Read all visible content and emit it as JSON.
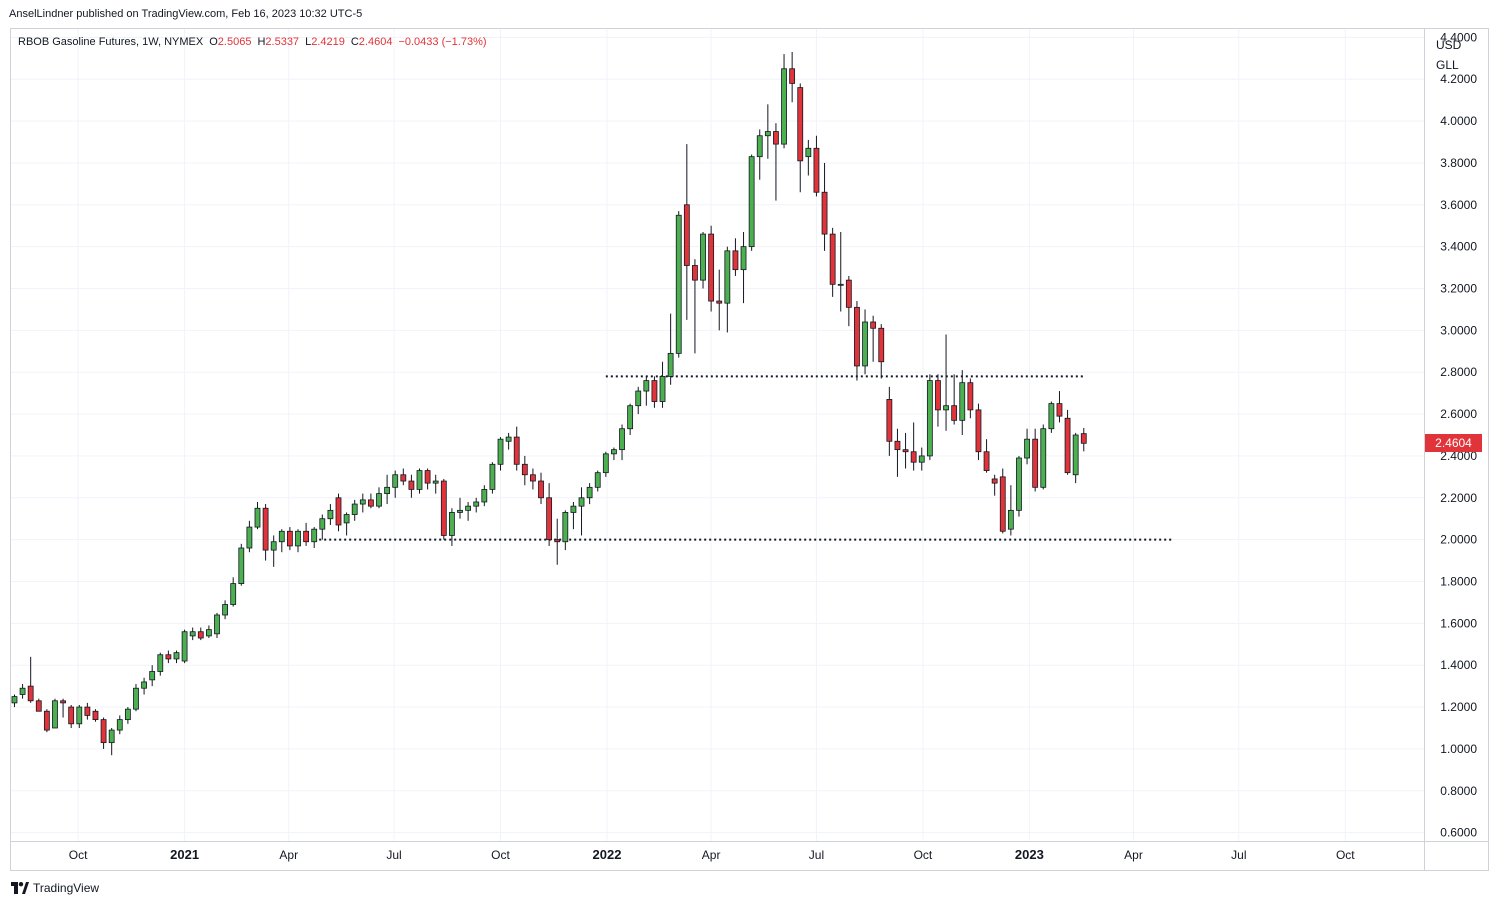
{
  "header": {
    "published": "AnselLindner published on TradingView.com, Feb 16, 2023 10:32 UTC-5"
  },
  "legend": {
    "symbol": "RBOB Gasoline Futures, 1W, NYMEX",
    "open_label": "O",
    "open": "2.5065",
    "high_label": "H",
    "high": "2.5337",
    "low_label": "L",
    "low": "2.4219",
    "close_label": "C",
    "close": "2.4604",
    "change": "−0.0433 (−1.73%)"
  },
  "axis": {
    "currency": "USD",
    "unit": "GLL",
    "last_price": "2.4604"
  },
  "footer": {
    "brand": "TradingView"
  },
  "colors": {
    "up": "#4caf50",
    "down": "#e0343a",
    "grid": "#f0f3fa",
    "text": "#131722"
  },
  "chart_data": {
    "type": "candlestick",
    "interval": "1W",
    "y_ticks": [
      "0.6000",
      "0.8000",
      "1.0000",
      "1.2000",
      "1.4000",
      "1.6000",
      "1.8000",
      "2.0000",
      "2.2000",
      "2.4000",
      "2.6000",
      "2.8000",
      "3.0000",
      "3.2000",
      "3.4000",
      "3.6000",
      "3.8000",
      "4.0000",
      "4.2000",
      "4.4000"
    ],
    "ylim": [
      0.56,
      4.44
    ],
    "x_ticks": [
      {
        "label": "Oct",
        "date": "2020-10-01",
        "bold": false
      },
      {
        "label": "2021",
        "date": "2021-01-01",
        "bold": true
      },
      {
        "label": "Apr",
        "date": "2021-04-01",
        "bold": false
      },
      {
        "label": "Jul",
        "date": "2021-07-01",
        "bold": false
      },
      {
        "label": "Oct",
        "date": "2021-10-01",
        "bold": false
      },
      {
        "label": "2022",
        "date": "2022-01-01",
        "bold": true
      },
      {
        "label": "Apr",
        "date": "2022-04-01",
        "bold": false
      },
      {
        "label": "Jul",
        "date": "2022-07-01",
        "bold": false
      },
      {
        "label": "Oct",
        "date": "2022-10-01",
        "bold": false
      },
      {
        "label": "2023",
        "date": "2023-01-01",
        "bold": true
      },
      {
        "label": "Apr",
        "date": "2023-04-01",
        "bold": false
      },
      {
        "label": "Jul",
        "date": "2023-07-01",
        "bold": false
      },
      {
        "label": "Oct",
        "date": "2023-10-01",
        "bold": false
      }
    ],
    "xlim": [
      "2020-08-04",
      "2023-12-08"
    ],
    "candles": [
      {
        "d": "2020-08-07",
        "o": 1.22,
        "h": 1.26,
        "l": 1.2,
        "c": 1.25
      },
      {
        "d": "2020-08-14",
        "o": 1.26,
        "h": 1.31,
        "l": 1.24,
        "c": 1.29
      },
      {
        "d": "2020-08-21",
        "o": 1.3,
        "h": 1.44,
        "l": 1.22,
        "c": 1.23
      },
      {
        "d": "2020-08-28",
        "o": 1.23,
        "h": 1.24,
        "l": 1.18,
        "c": 1.18
      },
      {
        "d": "2020-09-04",
        "o": 1.18,
        "h": 1.19,
        "l": 1.08,
        "c": 1.09
      },
      {
        "d": "2020-09-11",
        "o": 1.1,
        "h": 1.24,
        "l": 1.1,
        "c": 1.23
      },
      {
        "d": "2020-09-18",
        "o": 1.23,
        "h": 1.24,
        "l": 1.15,
        "c": 1.22
      },
      {
        "d": "2020-09-25",
        "o": 1.2,
        "h": 1.21,
        "l": 1.1,
        "c": 1.12
      },
      {
        "d": "2020-10-02",
        "o": 1.12,
        "h": 1.21,
        "l": 1.1,
        "c": 1.2
      },
      {
        "d": "2020-10-09",
        "o": 1.2,
        "h": 1.22,
        "l": 1.14,
        "c": 1.16
      },
      {
        "d": "2020-10-16",
        "o": 1.18,
        "h": 1.19,
        "l": 1.13,
        "c": 1.14
      },
      {
        "d": "2020-10-23",
        "o": 1.14,
        "h": 1.15,
        "l": 1.0,
        "c": 1.03
      },
      {
        "d": "2020-10-30",
        "o": 1.03,
        "h": 1.1,
        "l": 0.97,
        "c": 1.09
      },
      {
        "d": "2020-11-06",
        "o": 1.09,
        "h": 1.16,
        "l": 1.07,
        "c": 1.14
      },
      {
        "d": "2020-11-13",
        "o": 1.14,
        "h": 1.2,
        "l": 1.12,
        "c": 1.19
      },
      {
        "d": "2020-11-20",
        "o": 1.19,
        "h": 1.31,
        "l": 1.18,
        "c": 1.29
      },
      {
        "d": "2020-11-27",
        "o": 1.29,
        "h": 1.34,
        "l": 1.26,
        "c": 1.32
      },
      {
        "d": "2020-12-04",
        "o": 1.33,
        "h": 1.4,
        "l": 1.3,
        "c": 1.37
      },
      {
        "d": "2020-12-11",
        "o": 1.37,
        "h": 1.46,
        "l": 1.35,
        "c": 1.45
      },
      {
        "d": "2020-12-18",
        "o": 1.45,
        "h": 1.47,
        "l": 1.41,
        "c": 1.43
      },
      {
        "d": "2020-12-25",
        "o": 1.43,
        "h": 1.47,
        "l": 1.41,
        "c": 1.46
      },
      {
        "d": "2021-01-01",
        "o": 1.42,
        "h": 1.57,
        "l": 1.41,
        "c": 1.56
      },
      {
        "d": "2021-01-08",
        "o": 1.54,
        "h": 1.58,
        "l": 1.52,
        "c": 1.56
      },
      {
        "d": "2021-01-15",
        "o": 1.56,
        "h": 1.58,
        "l": 1.52,
        "c": 1.53
      },
      {
        "d": "2021-01-22",
        "o": 1.54,
        "h": 1.59,
        "l": 1.53,
        "c": 1.57
      },
      {
        "d": "2021-01-29",
        "o": 1.55,
        "h": 1.65,
        "l": 1.53,
        "c": 1.64
      },
      {
        "d": "2021-02-05",
        "o": 1.64,
        "h": 1.71,
        "l": 1.62,
        "c": 1.69
      },
      {
        "d": "2021-02-12",
        "o": 1.69,
        "h": 1.82,
        "l": 1.68,
        "c": 1.79
      },
      {
        "d": "2021-02-19",
        "o": 1.79,
        "h": 1.98,
        "l": 1.78,
        "c": 1.96
      },
      {
        "d": "2021-02-26",
        "o": 1.96,
        "h": 2.09,
        "l": 1.94,
        "c": 2.06
      },
      {
        "d": "2021-03-05",
        "o": 2.06,
        "h": 2.18,
        "l": 2.05,
        "c": 2.15
      },
      {
        "d": "2021-03-12",
        "o": 2.15,
        "h": 2.17,
        "l": 1.9,
        "c": 1.95
      },
      {
        "d": "2021-03-19",
        "o": 1.95,
        "h": 2.02,
        "l": 1.87,
        "c": 1.99
      },
      {
        "d": "2021-03-26",
        "o": 1.99,
        "h": 2.05,
        "l": 1.94,
        "c": 2.04
      },
      {
        "d": "2021-04-02",
        "o": 2.04,
        "h": 2.06,
        "l": 1.95,
        "c": 1.97
      },
      {
        "d": "2021-04-09",
        "o": 1.97,
        "h": 2.05,
        "l": 1.94,
        "c": 2.04
      },
      {
        "d": "2021-04-16",
        "o": 2.04,
        "h": 2.08,
        "l": 1.97,
        "c": 1.99
      },
      {
        "d": "2021-04-23",
        "o": 1.99,
        "h": 2.06,
        "l": 1.96,
        "c": 2.05
      },
      {
        "d": "2021-04-30",
        "o": 2.05,
        "h": 2.12,
        "l": 2.0,
        "c": 2.1
      },
      {
        "d": "2021-05-07",
        "o": 2.1,
        "h": 2.17,
        "l": 2.07,
        "c": 2.14
      },
      {
        "d": "2021-05-14",
        "o": 2.2,
        "h": 2.22,
        "l": 2.04,
        "c": 2.07
      },
      {
        "d": "2021-05-21",
        "o": 2.08,
        "h": 2.13,
        "l": 2.02,
        "c": 2.12
      },
      {
        "d": "2021-05-28",
        "o": 2.12,
        "h": 2.19,
        "l": 2.09,
        "c": 2.17
      },
      {
        "d": "2021-06-04",
        "o": 2.17,
        "h": 2.22,
        "l": 2.13,
        "c": 2.19
      },
      {
        "d": "2021-06-11",
        "o": 2.19,
        "h": 2.22,
        "l": 2.15,
        "c": 2.16
      },
      {
        "d": "2021-06-18",
        "o": 2.16,
        "h": 2.25,
        "l": 2.15,
        "c": 2.22
      },
      {
        "d": "2021-06-25",
        "o": 2.22,
        "h": 2.31,
        "l": 2.17,
        "c": 2.25
      },
      {
        "d": "2021-07-02",
        "o": 2.25,
        "h": 2.33,
        "l": 2.2,
        "c": 2.31
      },
      {
        "d": "2021-07-09",
        "o": 2.31,
        "h": 2.34,
        "l": 2.26,
        "c": 2.28
      },
      {
        "d": "2021-07-16",
        "o": 2.28,
        "h": 2.31,
        "l": 2.2,
        "c": 2.24
      },
      {
        "d": "2021-07-23",
        "o": 2.24,
        "h": 2.34,
        "l": 2.22,
        "c": 2.33
      },
      {
        "d": "2021-07-30",
        "o": 2.33,
        "h": 2.34,
        "l": 2.24,
        "c": 2.27
      },
      {
        "d": "2021-08-06",
        "o": 2.27,
        "h": 2.31,
        "l": 2.22,
        "c": 2.28
      },
      {
        "d": "2021-08-13",
        "o": 2.28,
        "h": 2.29,
        "l": 2.0,
        "c": 2.02
      },
      {
        "d": "2021-08-20",
        "o": 2.02,
        "h": 2.15,
        "l": 1.97,
        "c": 2.13
      },
      {
        "d": "2021-08-27",
        "o": 2.13,
        "h": 2.2,
        "l": 2.1,
        "c": 2.14
      },
      {
        "d": "2021-09-03",
        "o": 2.14,
        "h": 2.18,
        "l": 2.09,
        "c": 2.16
      },
      {
        "d": "2021-09-10",
        "o": 2.16,
        "h": 2.2,
        "l": 2.13,
        "c": 2.18
      },
      {
        "d": "2021-09-17",
        "o": 2.18,
        "h": 2.26,
        "l": 2.16,
        "c": 2.24
      },
      {
        "d": "2021-09-24",
        "o": 2.24,
        "h": 2.37,
        "l": 2.22,
        "c": 2.36
      },
      {
        "d": "2021-10-01",
        "o": 2.36,
        "h": 2.49,
        "l": 2.33,
        "c": 2.48
      },
      {
        "d": "2021-10-08",
        "o": 2.47,
        "h": 2.51,
        "l": 2.43,
        "c": 2.49
      },
      {
        "d": "2021-10-15",
        "o": 2.49,
        "h": 2.54,
        "l": 2.33,
        "c": 2.36
      },
      {
        "d": "2021-10-22",
        "o": 2.36,
        "h": 2.4,
        "l": 2.26,
        "c": 2.31
      },
      {
        "d": "2021-10-29",
        "o": 2.31,
        "h": 2.34,
        "l": 2.24,
        "c": 2.28
      },
      {
        "d": "2021-11-05",
        "o": 2.28,
        "h": 2.32,
        "l": 2.17,
        "c": 2.2
      },
      {
        "d": "2021-11-12",
        "o": 2.2,
        "h": 2.27,
        "l": 1.97,
        "c": 2.0
      },
      {
        "d": "2021-11-19",
        "o": 2.0,
        "h": 2.1,
        "l": 1.88,
        "c": 1.99
      },
      {
        "d": "2021-11-26",
        "o": 1.99,
        "h": 2.14,
        "l": 1.95,
        "c": 2.13
      },
      {
        "d": "2021-12-03",
        "o": 2.13,
        "h": 2.18,
        "l": 2.05,
        "c": 2.16
      },
      {
        "d": "2021-12-10",
        "o": 2.16,
        "h": 2.25,
        "l": 2.02,
        "c": 2.2
      },
      {
        "d": "2021-12-17",
        "o": 2.2,
        "h": 2.27,
        "l": 2.17,
        "c": 2.25
      },
      {
        "d": "2021-12-24",
        "o": 2.25,
        "h": 2.33,
        "l": 2.23,
        "c": 2.32
      },
      {
        "d": "2021-12-31",
        "o": 2.32,
        "h": 2.42,
        "l": 2.3,
        "c": 2.41
      },
      {
        "d": "2022-01-07",
        "o": 2.41,
        "h": 2.44,
        "l": 2.38,
        "c": 2.43
      },
      {
        "d": "2022-01-14",
        "o": 2.43,
        "h": 2.55,
        "l": 2.38,
        "c": 2.53
      },
      {
        "d": "2022-01-21",
        "o": 2.53,
        "h": 2.65,
        "l": 2.5,
        "c": 2.64
      },
      {
        "d": "2022-01-28",
        "o": 2.64,
        "h": 2.73,
        "l": 2.6,
        "c": 2.71
      },
      {
        "d": "2022-02-04",
        "o": 2.71,
        "h": 2.78,
        "l": 2.64,
        "c": 2.76
      },
      {
        "d": "2022-02-11",
        "o": 2.76,
        "h": 2.78,
        "l": 2.63,
        "c": 2.66
      },
      {
        "d": "2022-02-18",
        "o": 2.66,
        "h": 2.85,
        "l": 2.63,
        "c": 2.78
      },
      {
        "d": "2022-02-25",
        "o": 2.78,
        "h": 3.08,
        "l": 2.74,
        "c": 2.89
      },
      {
        "d": "2022-03-04",
        "o": 2.89,
        "h": 3.57,
        "l": 2.87,
        "c": 3.55
      },
      {
        "d": "2022-03-11",
        "o": 3.6,
        "h": 3.89,
        "l": 3.05,
        "c": 3.31
      },
      {
        "d": "2022-03-18",
        "o": 3.31,
        "h": 3.34,
        "l": 2.89,
        "c": 3.24
      },
      {
        "d": "2022-03-25",
        "o": 3.24,
        "h": 3.47,
        "l": 3.2,
        "c": 3.46
      },
      {
        "d": "2022-04-01",
        "o": 3.46,
        "h": 3.5,
        "l": 3.09,
        "c": 3.14
      },
      {
        "d": "2022-04-08",
        "o": 3.14,
        "h": 3.29,
        "l": 3.0,
        "c": 3.13
      },
      {
        "d": "2022-04-15",
        "o": 3.13,
        "h": 3.4,
        "l": 2.99,
        "c": 3.38
      },
      {
        "d": "2022-04-22",
        "o": 3.38,
        "h": 3.44,
        "l": 3.26,
        "c": 3.29
      },
      {
        "d": "2022-04-29",
        "o": 3.29,
        "h": 3.47,
        "l": 3.13,
        "c": 3.4
      },
      {
        "d": "2022-05-06",
        "o": 3.4,
        "h": 3.84,
        "l": 3.38,
        "c": 3.83
      },
      {
        "d": "2022-05-13",
        "o": 3.83,
        "h": 3.96,
        "l": 3.72,
        "c": 3.93
      },
      {
        "d": "2022-05-20",
        "o": 3.93,
        "h": 4.08,
        "l": 3.82,
        "c": 3.95
      },
      {
        "d": "2022-05-27",
        "o": 3.95,
        "h": 3.99,
        "l": 3.62,
        "c": 3.89
      },
      {
        "d": "2022-06-03",
        "o": 3.89,
        "h": 4.32,
        "l": 3.87,
        "c": 4.25
      },
      {
        "d": "2022-06-10",
        "o": 4.25,
        "h": 4.33,
        "l": 4.09,
        "c": 4.18
      },
      {
        "d": "2022-06-17",
        "o": 4.16,
        "h": 4.18,
        "l": 3.66,
        "c": 3.81
      },
      {
        "d": "2022-06-24",
        "o": 3.83,
        "h": 3.91,
        "l": 3.74,
        "c": 3.87
      },
      {
        "d": "2022-07-01",
        "o": 3.87,
        "h": 3.93,
        "l": 3.64,
        "c": 3.66
      },
      {
        "d": "2022-07-08",
        "o": 3.66,
        "h": 3.8,
        "l": 3.38,
        "c": 3.46
      },
      {
        "d": "2022-07-15",
        "o": 3.46,
        "h": 3.49,
        "l": 3.16,
        "c": 3.22
      },
      {
        "d": "2022-07-22",
        "o": 3.22,
        "h": 3.47,
        "l": 3.09,
        "c": 3.22
      },
      {
        "d": "2022-07-29",
        "o": 3.24,
        "h": 3.26,
        "l": 3.02,
        "c": 3.11
      },
      {
        "d": "2022-08-05",
        "o": 3.11,
        "h": 3.14,
        "l": 2.76,
        "c": 2.83
      },
      {
        "d": "2022-08-12",
        "o": 2.83,
        "h": 3.1,
        "l": 2.79,
        "c": 3.04
      },
      {
        "d": "2022-08-19",
        "o": 3.04,
        "h": 3.07,
        "l": 2.85,
        "c": 3.01
      },
      {
        "d": "2022-08-26",
        "o": 3.01,
        "h": 3.03,
        "l": 2.77,
        "c": 2.85
      },
      {
        "d": "2022-09-02",
        "o": 2.67,
        "h": 2.73,
        "l": 2.4,
        "c": 2.47
      },
      {
        "d": "2022-09-09",
        "o": 2.47,
        "h": 2.53,
        "l": 2.3,
        "c": 2.43
      },
      {
        "d": "2022-09-16",
        "o": 2.43,
        "h": 2.51,
        "l": 2.34,
        "c": 2.42
      },
      {
        "d": "2022-09-23",
        "o": 2.42,
        "h": 2.56,
        "l": 2.33,
        "c": 2.37
      },
      {
        "d": "2022-09-30",
        "o": 2.37,
        "h": 2.44,
        "l": 2.33,
        "c": 2.4
      },
      {
        "d": "2022-10-07",
        "o": 2.4,
        "h": 2.79,
        "l": 2.38,
        "c": 2.76
      },
      {
        "d": "2022-10-14",
        "o": 2.76,
        "h": 2.79,
        "l": 2.54,
        "c": 2.62
      },
      {
        "d": "2022-10-21",
        "o": 2.62,
        "h": 2.98,
        "l": 2.52,
        "c": 2.64
      },
      {
        "d": "2022-10-28",
        "o": 2.64,
        "h": 2.79,
        "l": 2.55,
        "c": 2.57
      },
      {
        "d": "2022-11-04",
        "o": 2.57,
        "h": 2.81,
        "l": 2.5,
        "c": 2.75
      },
      {
        "d": "2022-11-11",
        "o": 2.75,
        "h": 2.77,
        "l": 2.58,
        "c": 2.62
      },
      {
        "d": "2022-11-18",
        "o": 2.62,
        "h": 2.65,
        "l": 2.38,
        "c": 2.42
      },
      {
        "d": "2022-11-25",
        "o": 2.42,
        "h": 2.48,
        "l": 2.32,
        "c": 2.33
      },
      {
        "d": "2022-12-02",
        "o": 2.29,
        "h": 2.31,
        "l": 2.21,
        "c": 2.27
      },
      {
        "d": "2022-12-09",
        "o": 2.3,
        "h": 2.34,
        "l": 2.03,
        "c": 2.04
      },
      {
        "d": "2022-12-16",
        "o": 2.05,
        "h": 2.26,
        "l": 2.02,
        "c": 2.14
      },
      {
        "d": "2022-12-23",
        "o": 2.14,
        "h": 2.4,
        "l": 2.11,
        "c": 2.39
      },
      {
        "d": "2022-12-30",
        "o": 2.39,
        "h": 2.53,
        "l": 2.36,
        "c": 2.48
      },
      {
        "d": "2023-01-06",
        "o": 2.48,
        "h": 2.53,
        "l": 2.23,
        "c": 2.25
      },
      {
        "d": "2023-01-13",
        "o": 2.25,
        "h": 2.55,
        "l": 2.24,
        "c": 2.53
      },
      {
        "d": "2023-01-20",
        "o": 2.53,
        "h": 2.66,
        "l": 2.51,
        "c": 2.65
      },
      {
        "d": "2023-01-27",
        "o": 2.65,
        "h": 2.71,
        "l": 2.56,
        "c": 2.59
      },
      {
        "d": "2023-02-03",
        "o": 2.58,
        "h": 2.62,
        "l": 2.31,
        "c": 2.32
      },
      {
        "d": "2023-02-10",
        "o": 2.31,
        "h": 2.51,
        "l": 2.27,
        "c": 2.5
      },
      {
        "d": "2023-02-17",
        "o": 2.5065,
        "h": 2.5337,
        "l": 2.4219,
        "c": 2.4604
      }
    ],
    "annotations": [
      {
        "type": "hline-dotted",
        "y": 2.78,
        "from": "2021-12-31",
        "to": "2023-02-17"
      },
      {
        "type": "hline-dotted",
        "y": 2.0,
        "from": "2021-04-23",
        "to": "2023-05-05"
      }
    ]
  }
}
